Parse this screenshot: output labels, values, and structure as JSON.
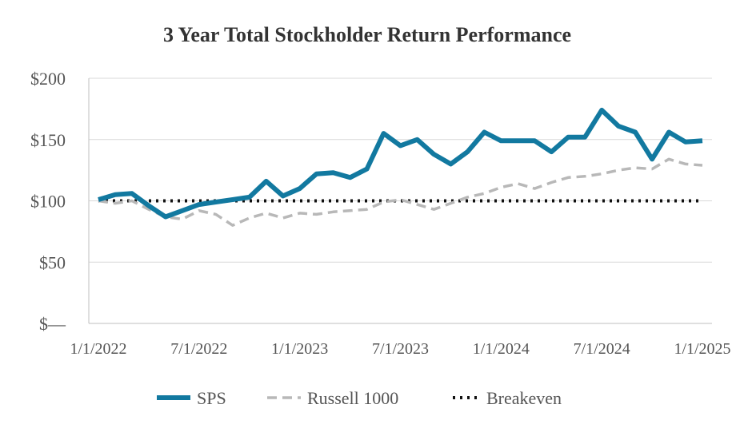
{
  "chart_data": {
    "type": "line",
    "title": "3 Year Total Stockholder Return Performance",
    "xlabel": "",
    "ylabel": "",
    "ylim": [
      0,
      200
    ],
    "y_ticks": [
      {
        "value": 0,
        "label": "$—"
      },
      {
        "value": 50,
        "label": "$50"
      },
      {
        "value": 100,
        "label": "$100"
      },
      {
        "value": 150,
        "label": "$150"
      },
      {
        "value": 200,
        "label": "$200"
      }
    ],
    "x_ticks": [
      {
        "index": 0,
        "label": "1/1/2022"
      },
      {
        "index": 6,
        "label": "7/1/2022"
      },
      {
        "index": 12,
        "label": "1/1/2023"
      },
      {
        "index": 18,
        "label": "7/1/2023"
      },
      {
        "index": 24,
        "label": "1/1/2024"
      },
      {
        "index": 30,
        "label": "7/1/2024"
      },
      {
        "index": 36,
        "label": "1/1/2025"
      }
    ],
    "x_count": 37,
    "grid": true,
    "legend_position": "bottom",
    "series": [
      {
        "name": "SPS",
        "color": "#1279a0",
        "style": "solid",
        "values": [
          101,
          105,
          106,
          96,
          87,
          92,
          97,
          99,
          101,
          103,
          116,
          104,
          110,
          122,
          123,
          119,
          126,
          155,
          145,
          150,
          138,
          130,
          140,
          156,
          149,
          149,
          149,
          140,
          152,
          152,
          174,
          161,
          156,
          134,
          156,
          148,
          149
        ]
      },
      {
        "name": "Russell 1000",
        "color": "#b8b8b8",
        "style": "dashed",
        "values": [
          100,
          98,
          100,
          93,
          87,
          85,
          92,
          89,
          80,
          86,
          90,
          86,
          90,
          89,
          91,
          92,
          93,
          99,
          101,
          97,
          93,
          98,
          103,
          106,
          111,
          114,
          110,
          115,
          119,
          120,
          122,
          125,
          127,
          126,
          134,
          130,
          129
        ]
      },
      {
        "name": "Breakeven",
        "color": "#111111",
        "style": "dotted",
        "values": [
          100,
          100,
          100,
          100,
          100,
          100,
          100,
          100,
          100,
          100,
          100,
          100,
          100,
          100,
          100,
          100,
          100,
          100,
          100,
          100,
          100,
          100,
          100,
          100,
          100,
          100,
          100,
          100,
          100,
          100,
          100,
          100,
          100,
          100,
          100,
          100,
          100
        ]
      }
    ]
  }
}
